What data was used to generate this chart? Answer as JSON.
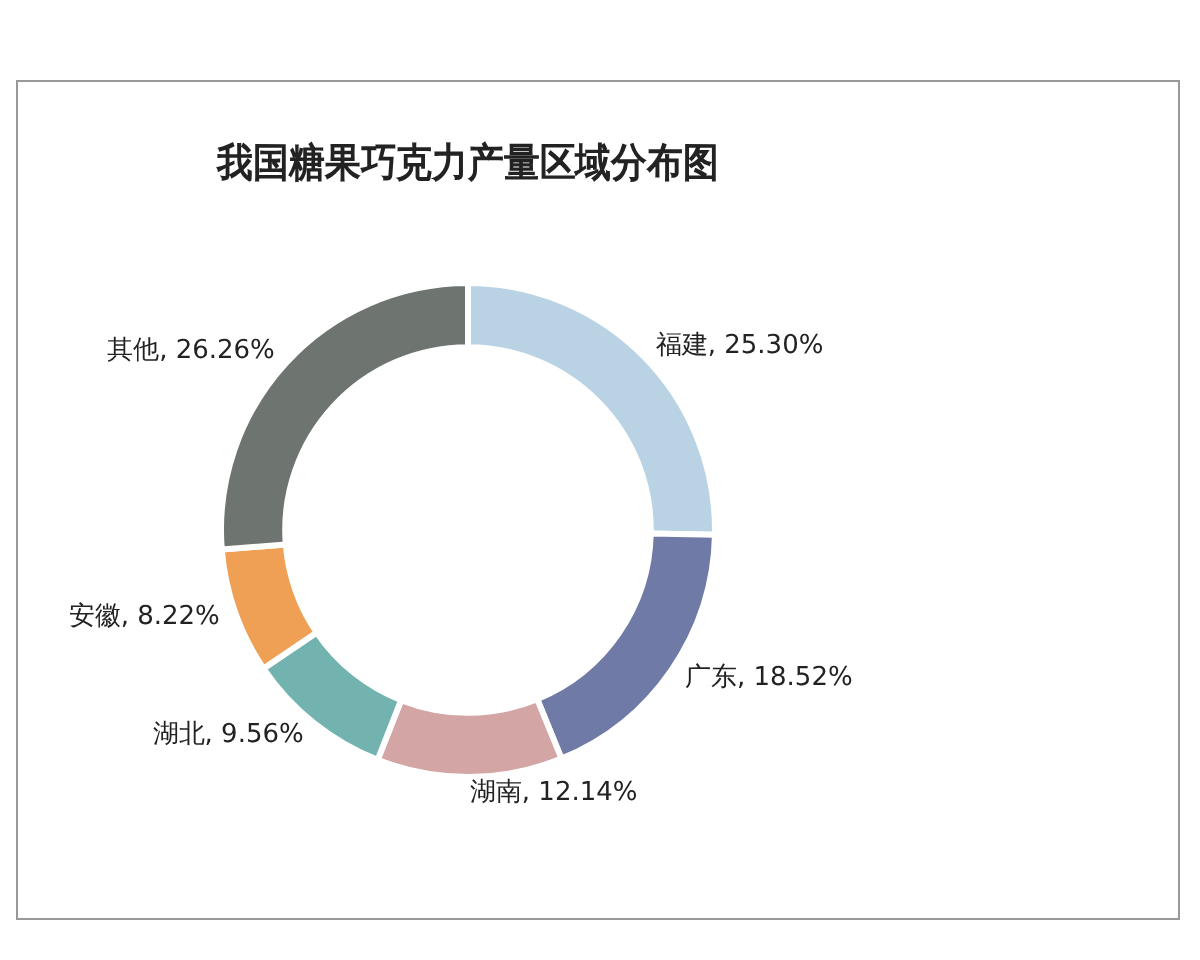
{
  "chart_data": {
    "type": "donut",
    "title": "我国糖果巧克力产量区域分布图",
    "categories": [
      "福建",
      "广东",
      "湖南",
      "湖北",
      "安徽",
      "其他"
    ],
    "values": [
      25.3,
      18.52,
      12.14,
      9.56,
      8.22,
      26.26
    ],
    "value_labels": [
      "25.30%",
      "18.52%",
      "12.14%",
      "9.56%",
      "8.22%",
      "26.26%"
    ],
    "colors": [
      "#b9d3e4",
      "#6f7aa6",
      "#d4a5a5",
      "#72b3b0",
      "#f0a055",
      "#6e7470"
    ],
    "legend": false
  }
}
